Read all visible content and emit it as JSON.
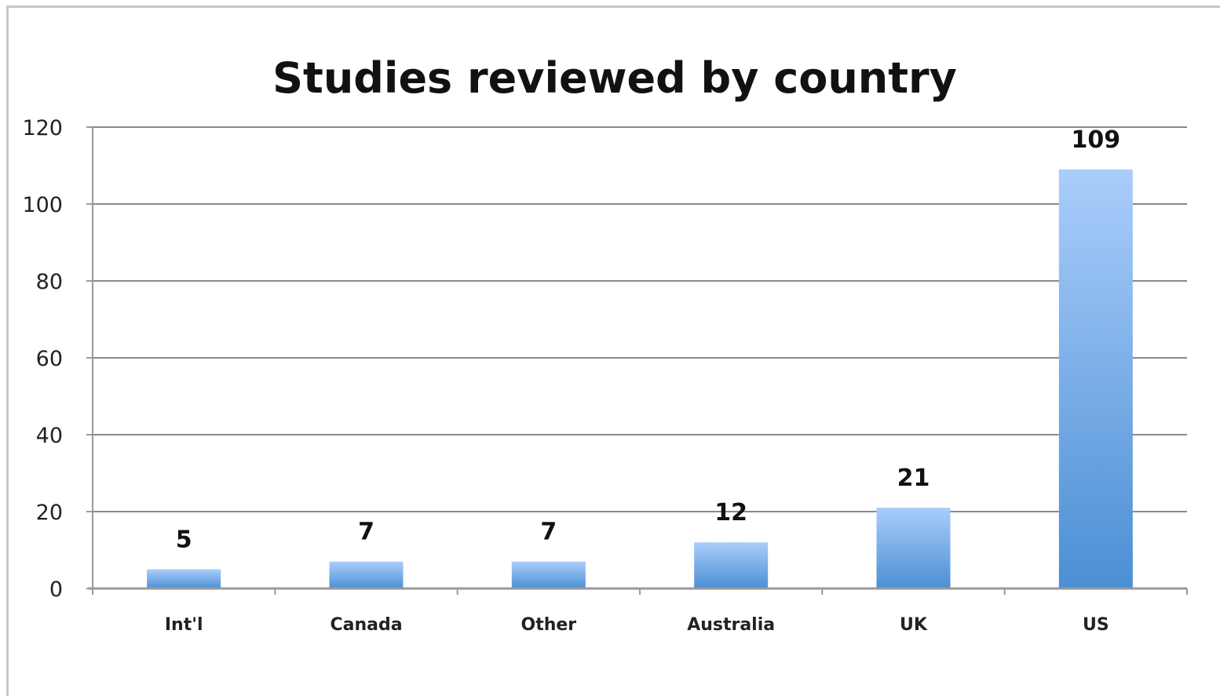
{
  "chart_data": {
    "type": "bar",
    "title": "Studies reviewed by country",
    "xlabel": "",
    "ylabel": "",
    "categories": [
      "Int'l",
      "Canada",
      "Other",
      "Australia",
      "UK",
      "US"
    ],
    "values": [
      5,
      7,
      7,
      12,
      21,
      109
    ],
    "data_labels": [
      "5",
      "7",
      "7",
      "12",
      "21",
      "109"
    ],
    "ylim": [
      0,
      120
    ],
    "yticks": [
      "0",
      "20",
      "40",
      "60",
      "80",
      "100",
      "120"
    ],
    "grid": true,
    "legend": "none",
    "colors": {
      "bar_top": "#aacdfb",
      "bar_bottom": "#4b8fd4",
      "gridline": "#8a8a8a",
      "axis": "#9a9a9a"
    }
  }
}
